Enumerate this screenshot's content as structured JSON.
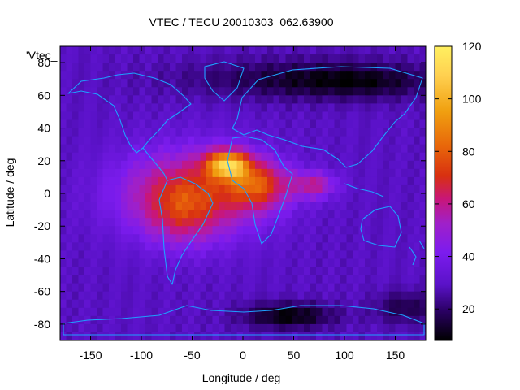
{
  "chart_data": {
    "type": "heatmap",
    "title": "VTEC / TECU 20010303_062.63900",
    "xlabel": "Longitude / deg",
    "ylabel": "Latitude / deg",
    "key_label": "'Vtec_",
    "xlim": [
      -180,
      180
    ],
    "ylim": [
      -90,
      90
    ],
    "x_ticks": [
      -150,
      -100,
      -50,
      0,
      50,
      100,
      150
    ],
    "y_ticks": [
      -80,
      -60,
      -40,
      -20,
      0,
      20,
      40,
      60,
      80
    ],
    "colorbar": {
      "min": 8,
      "max": 120,
      "ticks": [
        20,
        40,
        60,
        80,
        100,
        120
      ]
    },
    "colormap": [
      "#000000",
      "#2a0063",
      "#5a12c8",
      "#7c1cee",
      "#a020c8",
      "#c8167a",
      "#d83010",
      "#e8660a",
      "#f0a010",
      "#ffd050",
      "#fff060"
    ],
    "features": [
      {
        "name": "equatorial-anomaly-peak",
        "lon": -15,
        "lat": 18,
        "vtec": 115
      },
      {
        "name": "south-america-crest",
        "lon": -60,
        "lat": -5,
        "vtec": 88
      },
      {
        "name": "africa-crest",
        "lon": 20,
        "lat": 5,
        "vtec": 82
      },
      {
        "name": "indian-ocean-tail",
        "lon": 70,
        "lat": 5,
        "vtec": 68
      },
      {
        "name": "background",
        "vtec": 30
      },
      {
        "name": "polar-minimum-north",
        "lon": 60,
        "lat": 70,
        "vtec": 15
      },
      {
        "name": "polar-minimum-south",
        "lon": 45,
        "lat": -75,
        "vtec": 8
      }
    ]
  }
}
